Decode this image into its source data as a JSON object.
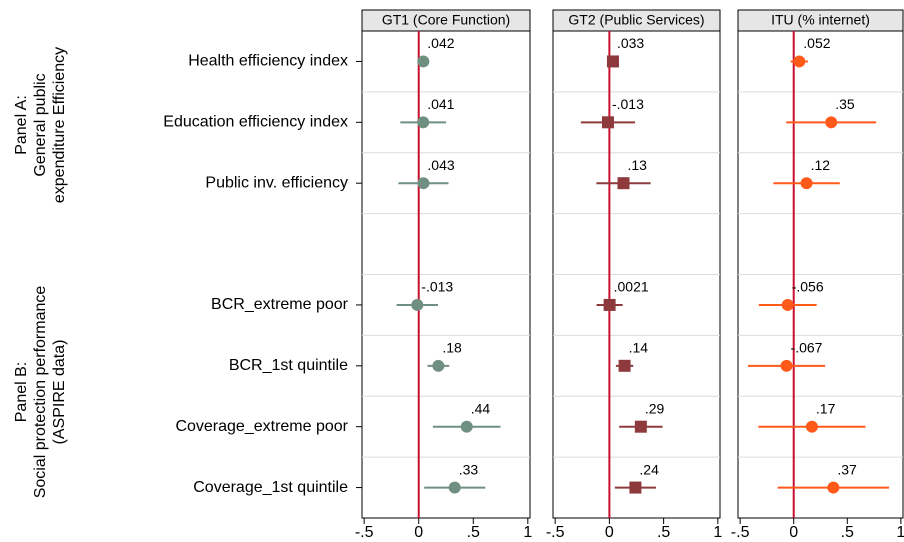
{
  "panel_labels": {
    "a": [
      "Panel A:",
      "General public",
      "expenditure Efficiency"
    ],
    "b": [
      "Panel B:",
      "Social protection performance",
      "(ASPIRE data)"
    ]
  },
  "chart_data": [
    {
      "type": "coefplot",
      "title": "GT1 (Core Function)",
      "marker": "circle",
      "color": "#6f8f80",
      "categories": [
        "Health efficiency index",
        "Education efficiency index",
        "Public inv. efficiency",
        null,
        "BCR_extreme poor",
        "BCR_1st quintile",
        "Coverage_extreme poor",
        "Coverage_1st quintile"
      ],
      "values": [
        0.042,
        0.041,
        0.043,
        null,
        -0.013,
        0.18,
        0.44,
        0.33
      ],
      "value_labels": [
        ".042",
        ".041",
        ".043",
        null,
        "-.013",
        ".18",
        ".44",
        ".33"
      ],
      "errors": [
        0.01,
        0.21,
        0.23,
        null,
        0.19,
        0.1,
        0.31,
        0.28
      ],
      "xlim": [
        -0.52,
        1.02
      ],
      "xticks": [
        {
          "value": -0.5,
          "label": "-.5"
        },
        0,
        {
          "value": 0.5,
          "label": ".5"
        },
        1
      ],
      "refline": 0
    },
    {
      "type": "coefplot",
      "title": "GT2 (Public Services)",
      "marker": "square",
      "color": "#8e3a3d",
      "values": [
        0.033,
        -0.013,
        0.13,
        null,
        0.0021,
        0.14,
        0.29,
        0.24
      ],
      "value_labels": [
        ".033",
        "-.013",
        ".13",
        null,
        ".0021",
        ".14",
        ".29",
        ".24"
      ],
      "errors": [
        0.02,
        0.25,
        0.25,
        null,
        0.12,
        0.08,
        0.2,
        0.19
      ],
      "xlim": [
        -0.52,
        1.02
      ],
      "xticks": [
        {
          "value": -0.5,
          "label": "-.5"
        },
        0,
        {
          "value": 0.5,
          "label": ".5"
        },
        1
      ],
      "refline": 0
    },
    {
      "type": "coefplot",
      "title": "ITU (% internet)",
      "marker": "circle",
      "color": "#ff5a1a",
      "values": [
        0.052,
        0.35,
        0.12,
        null,
        -0.056,
        -0.067,
        0.17,
        0.37
      ],
      "value_labels": [
        ".052",
        ".35",
        ".12",
        null,
        "-.056",
        "-.067",
        ".17",
        ".37"
      ],
      "errors": [
        0.08,
        0.42,
        0.31,
        null,
        0.27,
        0.36,
        0.5,
        0.52
      ],
      "xlim": [
        -0.52,
        1.02
      ],
      "xticks": [
        {
          "value": -0.5,
          "label": "-.5"
        },
        0,
        {
          "value": 0.5,
          "label": ".5"
        },
        1
      ],
      "refline": 0
    }
  ]
}
